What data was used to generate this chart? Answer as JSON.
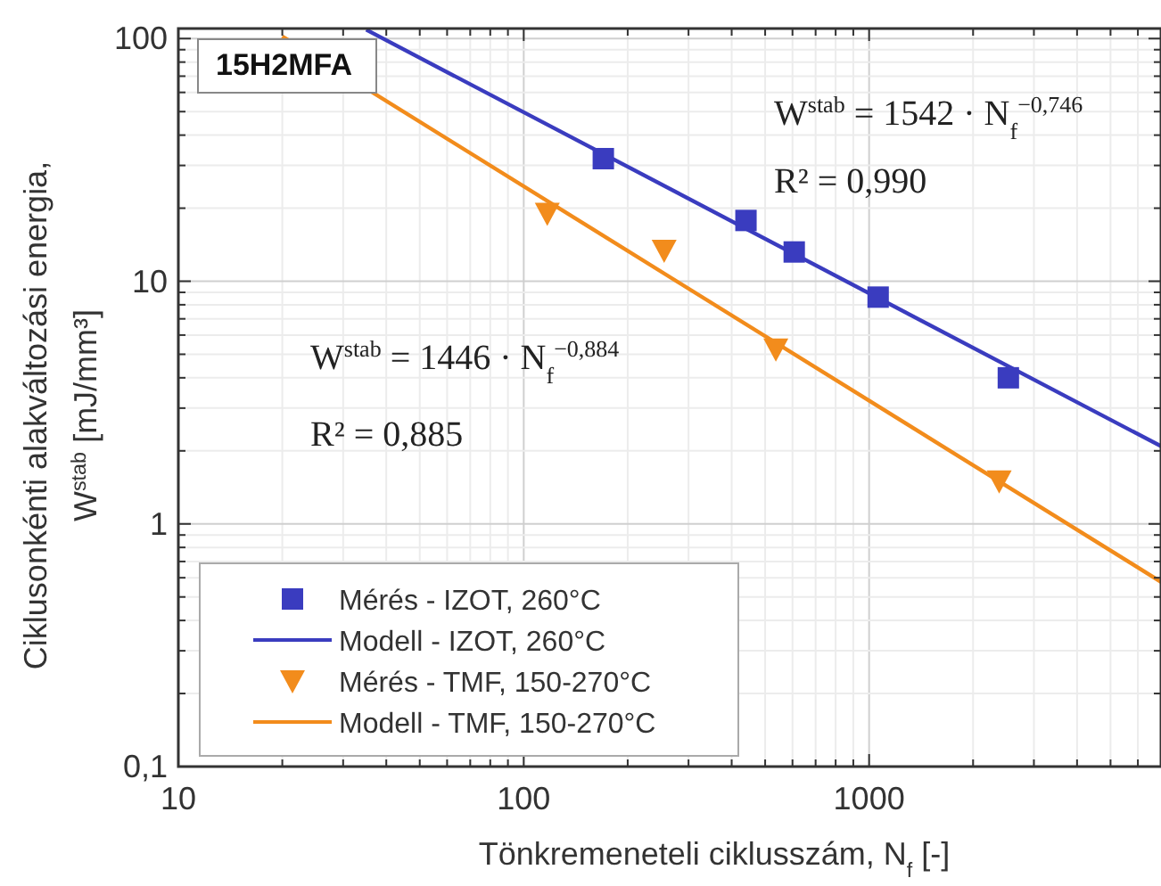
{
  "chart_data": {
    "type": "scatter",
    "xlabel": "Tönkremeneteli ciklusszám, N$_{f}$ [-]",
    "ylabel": "Ciklusonkénti alakváltozási energia,\nW$^{stab}$ [mJ/mm³]",
    "log": "xy",
    "grid": true,
    "legend": "bottom left",
    "xlim": [
      10,
      7000
    ],
    "ylim": [
      0.1,
      110
    ],
    "xticks": [
      10,
      {
        "value": 20,
        "label": null
      },
      {
        "value": 30,
        "label": null
      },
      {
        "value": 40,
        "label": null
      },
      {
        "value": 50,
        "label": null
      },
      {
        "value": 60,
        "label": null
      },
      {
        "value": 70,
        "label": null
      },
      {
        "value": 80,
        "label": null
      },
      {
        "value": 90,
        "label": null
      },
      100,
      {
        "value": 200,
        "label": null
      },
      {
        "value": 300,
        "label": null
      },
      {
        "value": 400,
        "label": null
      },
      {
        "value": 500,
        "label": null
      },
      {
        "value": 600,
        "label": null
      },
      {
        "value": 700,
        "label": null
      },
      {
        "value": 800,
        "label": null
      },
      {
        "value": 900,
        "label": null
      },
      1000,
      {
        "value": 2000,
        "label": null
      },
      {
        "value": 3000,
        "label": null
      },
      {
        "value": 4000,
        "label": null
      },
      {
        "value": 5000,
        "label": null
      },
      {
        "value": 6000,
        "label": null
      }
    ],
    "yticks": [
      {
        "value": 0.1,
        "label": "0,1"
      },
      {
        "value": 0.2,
        "label": null
      },
      {
        "value": 0.3,
        "label": null
      },
      {
        "value": 0.4,
        "label": null
      },
      {
        "value": 0.5,
        "label": null
      },
      {
        "value": 0.6,
        "label": null
      },
      {
        "value": 0.7,
        "label": null
      },
      {
        "value": 0.8,
        "label": null
      },
      {
        "value": 0.9,
        "label": null
      },
      1,
      {
        "value": 2,
        "label": null
      },
      {
        "value": 3,
        "label": null
      },
      {
        "value": 4,
        "label": null
      },
      {
        "value": 5,
        "label": null
      },
      {
        "value": 6,
        "label": null
      },
      {
        "value": 7,
        "label": null
      },
      {
        "value": 8,
        "label": null
      },
      {
        "value": 9,
        "label": null
      },
      10,
      {
        "value": 20,
        "label": null
      },
      {
        "value": 30,
        "label": null
      },
      {
        "value": 40,
        "label": null
      },
      {
        "value": 50,
        "label": null
      },
      {
        "value": 60,
        "label": null
      },
      {
        "value": 70,
        "label": null
      },
      {
        "value": 80,
        "label": null
      },
      {
        "value": 90,
        "label": null
      },
      100
    ],
    "series": [
      {
        "name": "Mérés - IZOT, 260°C",
        "marker": "square",
        "color": "#3a3cbf",
        "x": [
          170,
          440,
          607,
          1062,
          2530
        ],
        "values": [
          32,
          17.8,
          13.2,
          8.6,
          4.0
        ]
      },
      {
        "name": "Modell - IZOT, 260°C",
        "type": "line",
        "marker": "none",
        "color": "#3a3cbf",
        "x": [
          35,
          7000
        ],
        "values": [
          108.7,
          2.09
        ]
      },
      {
        "name": "Mérés - TMF, 150-270°C",
        "marker": "triangle",
        "color": "#f28c1c",
        "x": [
          117,
          255,
          537,
          2380
        ],
        "values": [
          19,
          13.4,
          5.25,
          1.5
        ]
      },
      {
        "name": "Modell - TMF, 150-270°C",
        "type": "line",
        "marker": "none",
        "color": "#f28c1c",
        "x": [
          20,
          7000
        ],
        "values": [
          102,
          0.577
        ]
      }
    ],
    "annotations": [
      "15H2MFA",
      "W$^{stab}$ = 1542 · N$_{f}$$^{−0,746}$",
      "R² = 0,990",
      "W$^{stab}$ = 1446 · N$_{f}$$^{−0,884}$",
      "R² = 0,885"
    ]
  }
}
